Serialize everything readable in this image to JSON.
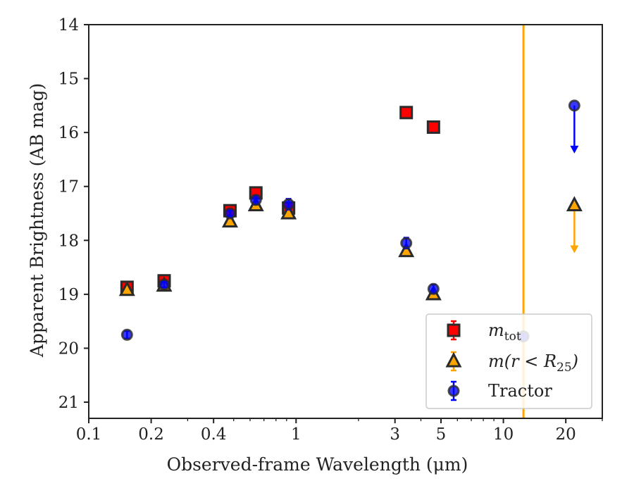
{
  "chart_data": {
    "type": "scatter",
    "xlabel": "Observed-frame Wavelength (μm)",
    "ylabel": "Apparent Brightness (AB mag)",
    "xscale": "log",
    "xlim": [
      0.1,
      30
    ],
    "ylim": [
      21.3,
      14
    ],
    "y_inverted": true,
    "xticks": [
      {
        "value": 0.1,
        "label": "0.1"
      },
      {
        "value": 0.2,
        "label": "0.2"
      },
      {
        "value": 0.4,
        "label": "0.4"
      },
      {
        "value": 1,
        "label": "1"
      },
      {
        "value": 3,
        "label": "3"
      },
      {
        "value": 5,
        "label": "5"
      },
      {
        "value": 10,
        "label": "10"
      },
      {
        "value": 20,
        "label": "20"
      }
    ],
    "yticks": [
      {
        "value": 14,
        "label": "14"
      },
      {
        "value": 15,
        "label": "15"
      },
      {
        "value": 16,
        "label": "16"
      },
      {
        "value": 17,
        "label": "17"
      },
      {
        "value": 18,
        "label": "18"
      },
      {
        "value": 19,
        "label": "19"
      },
      {
        "value": 20,
        "label": "20"
      },
      {
        "value": 21,
        "label": "21"
      }
    ],
    "grid": false,
    "legend_position": "lower-right",
    "vertical_line": {
      "x": 12.5,
      "color": "#FFA500"
    },
    "series": [
      {
        "label": "m_tot",
        "marker": "square",
        "color": "#FF0000",
        "points": [
          {
            "x": 0.153,
            "y": 18.87,
            "err": 0.05
          },
          {
            "x": 0.231,
            "y": 18.75,
            "err": 0.06
          },
          {
            "x": 0.48,
            "y": 17.45,
            "err": 0.05
          },
          {
            "x": 0.64,
            "y": 17.12,
            "err": 0.07
          },
          {
            "x": 0.92,
            "y": 17.4,
            "err": 0.1
          },
          {
            "x": 3.4,
            "y": 15.63,
            "err": 0.04
          },
          {
            "x": 4.6,
            "y": 15.9,
            "err": 0.04
          }
        ]
      },
      {
        "label": "m(r < R25)",
        "marker": "triangle",
        "color": "#FFA500",
        "points": [
          {
            "x": 0.153,
            "y": 18.92,
            "err": 0.03
          },
          {
            "x": 0.231,
            "y": 18.84,
            "err": 0.03
          },
          {
            "x": 0.48,
            "y": 17.65,
            "err": 0.03
          },
          {
            "x": 0.64,
            "y": 17.35,
            "err": 0.03
          },
          {
            "x": 0.92,
            "y": 17.5,
            "err": 0.03
          },
          {
            "x": 3.4,
            "y": 18.2,
            "err": 0.03
          },
          {
            "x": 4.6,
            "y": 19.0,
            "err": 0.03
          },
          {
            "x": 22.0,
            "y": 17.35,
            "upper_limit": true
          }
        ]
      },
      {
        "label": "Tractor",
        "marker": "circle",
        "color": "#0000FF",
        "points": [
          {
            "x": 0.153,
            "y": 19.75,
            "err": 0.07
          },
          {
            "x": 0.231,
            "y": 18.82,
            "err": 0.05
          },
          {
            "x": 0.48,
            "y": 17.5,
            "err": 0.05
          },
          {
            "x": 0.64,
            "y": 17.25,
            "err": 0.08
          },
          {
            "x": 0.92,
            "y": 17.33,
            "err": 0.1
          },
          {
            "x": 3.4,
            "y": 18.05,
            "err": 0.1
          },
          {
            "x": 4.6,
            "y": 18.9,
            "err": 0.08
          },
          {
            "x": 12.5,
            "y": 19.78
          },
          {
            "x": 22.0,
            "y": 15.5,
            "upper_limit": true
          }
        ]
      }
    ],
    "legend": [
      {
        "marker": "square",
        "color": "#FF0000",
        "base": "m",
        "sub": "tot",
        "tail": ""
      },
      {
        "marker": "triangle",
        "color": "#FFA500",
        "base": "m(r < R",
        "sub": "25",
        "tail": ")"
      },
      {
        "marker": "circle",
        "color": "#0000FF",
        "base": "Tractor",
        "sub": "",
        "tail": ""
      }
    ]
  }
}
